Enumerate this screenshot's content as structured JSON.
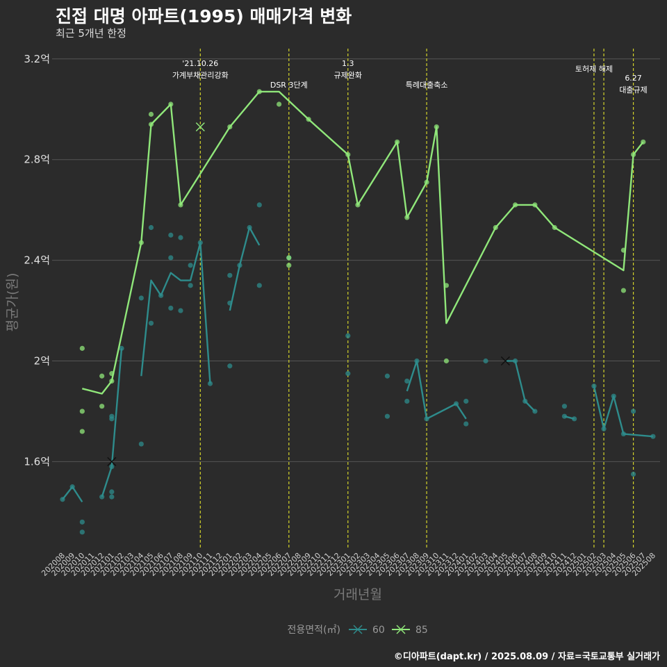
{
  "title": "진접 대명 아파트(1995) 매매가격 변화",
  "subtitle": "최근 5개년 한정",
  "caption": "©디아파트(dapt.kr) / 2025.08.09 / 자료=국토교통부 실거래가",
  "colors": {
    "background": "#2b2b2b",
    "grid": "#555555",
    "event_line": "#d4d42a",
    "series_60": "#2e8c8c",
    "series_85": "#90e77a"
  },
  "chart_data": {
    "type": "line",
    "xlabel": "거래년월",
    "ylabel": "평균가(원)",
    "x": [
      "202008",
      "202009",
      "202010",
      "202011",
      "202012",
      "202101",
      "202102",
      "202103",
      "202104",
      "202105",
      "202106",
      "202107",
      "202108",
      "202109",
      "202110",
      "202111",
      "202112",
      "202201",
      "202202",
      "202203",
      "202204",
      "202205",
      "202206",
      "202207",
      "202208",
      "202209",
      "202210",
      "202211",
      "202212",
      "202301",
      "202302",
      "202303",
      "202304",
      "202305",
      "202306",
      "202307",
      "202308",
      "202309",
      "202310",
      "202311",
      "202312",
      "202401",
      "202402",
      "202403",
      "202404",
      "202405",
      "202406",
      "202407",
      "202408",
      "202409",
      "202410",
      "202411",
      "202412",
      "202501",
      "202502",
      "202503",
      "202504",
      "202505",
      "202506",
      "202507",
      "202508"
    ],
    "yticks": [
      {
        "value": 1.6,
        "label": "1.6억"
      },
      {
        "value": 2.0,
        "label": "2억"
      },
      {
        "value": 2.4,
        "label": "2.4억"
      },
      {
        "value": 2.8,
        "label": "2.8억"
      },
      {
        "value": 3.2,
        "label": "3.2억"
      }
    ],
    "ylim": [
      1.2,
      3.25
    ],
    "legend": {
      "title": "전용면적(㎡)",
      "position": "bottom",
      "entries": [
        "60",
        "85"
      ]
    },
    "series": [
      {
        "name": "60",
        "line_segments": [
          [
            [
              "202008",
              1.45
            ],
            [
              "202009",
              1.5
            ],
            [
              "202010",
              1.44
            ]
          ],
          [
            [
              "202012",
              1.46
            ],
            [
              "202101",
              1.58
            ],
            [
              "202102",
              2.05
            ]
          ],
          [
            [
              "202104",
              1.94
            ],
            [
              "202105",
              2.32
            ],
            [
              "202106",
              2.26
            ],
            [
              "202107",
              2.35
            ],
            [
              "202108",
              2.32
            ],
            [
              "202109",
              2.32
            ],
            [
              "202110",
              2.47
            ],
            [
              "202111",
              1.91
            ]
          ],
          [
            [
              "202201",
              2.2
            ],
            [
              "202202",
              2.38
            ],
            [
              "202203",
              2.53
            ],
            [
              "202204",
              2.46
            ]
          ],
          [
            [
              "202307",
              1.88
            ],
            [
              "202308",
              2.0
            ],
            [
              "202309",
              1.77
            ],
            [
              "202312",
              1.83
            ],
            [
              "202401",
              1.77
            ]
          ],
          [
            [
              "202405",
              2.0
            ],
            [
              "202406",
              2.0
            ],
            [
              "202407",
              1.84
            ],
            [
              "202408",
              1.8
            ]
          ],
          [
            [
              "202411",
              1.78
            ],
            [
              "202412",
              1.77
            ]
          ],
          [
            [
              "202502",
              1.9
            ],
            [
              "202503",
              1.73
            ],
            [
              "202504",
              1.86
            ],
            [
              "202505",
              1.71
            ],
            [
              "202508",
              1.7
            ]
          ]
        ],
        "points": [
          [
            "202008",
            1.45
          ],
          [
            "202009",
            1.5
          ],
          [
            "202010",
            1.36
          ],
          [
            "202010",
            1.32
          ],
          [
            "202012",
            1.46
          ],
          [
            "202101",
            1.58
          ],
          [
            "202101",
            1.48
          ],
          [
            "202101",
            1.46
          ],
          [
            "202101",
            1.77
          ],
          [
            "202101",
            1.78
          ],
          [
            "202102",
            2.05
          ],
          [
            "202104",
            1.67
          ],
          [
            "202104",
            2.25
          ],
          [
            "202105",
            2.53
          ],
          [
            "202105",
            2.15
          ],
          [
            "202106",
            2.26
          ],
          [
            "202107",
            2.5
          ],
          [
            "202107",
            2.41
          ],
          [
            "202107",
            2.21
          ],
          [
            "202108",
            2.49
          ],
          [
            "202108",
            2.2
          ],
          [
            "202109",
            2.38
          ],
          [
            "202109",
            2.3
          ],
          [
            "202110",
            2.47
          ],
          [
            "202111",
            1.91
          ],
          [
            "202201",
            2.34
          ],
          [
            "202201",
            2.23
          ],
          [
            "202201",
            1.98
          ],
          [
            "202202",
            2.38
          ],
          [
            "202203",
            2.53
          ],
          [
            "202204",
            2.62
          ],
          [
            "202204",
            2.3
          ],
          [
            "202207",
            2.41
          ],
          [
            "202301",
            2.1
          ],
          [
            "202301",
            1.95
          ],
          [
            "202305",
            1.94
          ],
          [
            "202305",
            1.78
          ],
          [
            "202307",
            1.92
          ],
          [
            "202307",
            1.84
          ],
          [
            "202308",
            2.0
          ],
          [
            "202309",
            1.77
          ],
          [
            "202312",
            1.83
          ],
          [
            "202401",
            1.84
          ],
          [
            "202401",
            1.75
          ],
          [
            "202403",
            2.0
          ],
          [
            "202406",
            2.0
          ],
          [
            "202407",
            1.84
          ],
          [
            "202408",
            1.8
          ],
          [
            "202411",
            1.82
          ],
          [
            "202411",
            1.78
          ],
          [
            "202412",
            1.77
          ],
          [
            "202502",
            1.9
          ],
          [
            "202503",
            1.73
          ],
          [
            "202504",
            1.86
          ],
          [
            "202505",
            1.71
          ],
          [
            "202506",
            1.8
          ],
          [
            "202506",
            1.55
          ],
          [
            "202508",
            1.7
          ]
        ],
        "markers": [
          [
            "202101",
            1.6
          ],
          [
            "202405",
            2.0
          ]
        ]
      },
      {
        "name": "85",
        "line_segments": [
          [
            [
              "202010",
              1.89
            ],
            [
              "202012",
              1.87
            ],
            [
              "202101",
              1.92
            ],
            [
              "202104",
              2.47
            ],
            [
              "202105",
              2.94
            ],
            [
              "202107",
              3.02
            ],
            [
              "202108",
              2.62
            ],
            [
              "202201",
              2.93
            ],
            [
              "202204",
              3.07
            ],
            [
              "202206",
              3.07
            ],
            [
              "202209",
              2.96
            ],
            [
              "202301",
              2.82
            ],
            [
              "202302",
              2.62
            ],
            [
              "202306",
              2.87
            ],
            [
              "202307",
              2.57
            ],
            [
              "202309",
              2.71
            ],
            [
              "202310",
              2.93
            ],
            [
              "202311",
              2.15
            ],
            [
              "202404",
              2.53
            ],
            [
              "202406",
              2.62
            ],
            [
              "202408",
              2.62
            ],
            [
              "202410",
              2.53
            ],
            [
              "202505",
              2.36
            ],
            [
              "202506",
              2.82
            ],
            [
              "202507",
              2.87
            ]
          ]
        ],
        "points": [
          [
            "202010",
            2.05
          ],
          [
            "202010",
            1.8
          ],
          [
            "202010",
            1.72
          ],
          [
            "202012",
            1.94
          ],
          [
            "202012",
            1.82
          ],
          [
            "202101",
            1.95
          ],
          [
            "202101",
            1.92
          ],
          [
            "202104",
            2.47
          ],
          [
            "202105",
            2.98
          ],
          [
            "202105",
            2.94
          ],
          [
            "202107",
            3.02
          ],
          [
            "202108",
            2.62
          ],
          [
            "202201",
            2.93
          ],
          [
            "202204",
            3.07
          ],
          [
            "202206",
            3.02
          ],
          [
            "202207",
            2.41
          ],
          [
            "202207",
            2.38
          ],
          [
            "202209",
            2.96
          ],
          [
            "202301",
            2.82
          ],
          [
            "202302",
            2.62
          ],
          [
            "202306",
            2.87
          ],
          [
            "202307",
            2.57
          ],
          [
            "202309",
            2.71
          ],
          [
            "202310",
            2.93
          ],
          [
            "202311",
            2.3
          ],
          [
            "202311",
            2.0
          ],
          [
            "202404",
            2.53
          ],
          [
            "202406",
            2.62
          ],
          [
            "202408",
            2.62
          ],
          [
            "202410",
            2.53
          ],
          [
            "202505",
            2.44
          ],
          [
            "202505",
            2.28
          ],
          [
            "202506",
            2.82
          ],
          [
            "202507",
            2.87
          ]
        ],
        "markers": [
          [
            "202110",
            2.93
          ]
        ]
      }
    ],
    "events": [
      {
        "x": "202110",
        "label": [
          "'21.10.26",
          "가계부채관리강화"
        ],
        "level": 0
      },
      {
        "x": "202207",
        "label": [
          "DSR 3단계"
        ],
        "level": 1
      },
      {
        "x": "202301",
        "label": [
          "1.3",
          "규제완화"
        ],
        "level": 0
      },
      {
        "x": "202309",
        "label": [
          "특례대출축소"
        ],
        "level": 1
      },
      {
        "x": "202502",
        "label": [
          "토허제 해제"
        ],
        "level": 0
      },
      {
        "x": "202503",
        "label": [],
        "level": 0
      },
      {
        "x": "202506",
        "label": [
          "6.27",
          "대출규제"
        ],
        "level": 2
      }
    ]
  }
}
